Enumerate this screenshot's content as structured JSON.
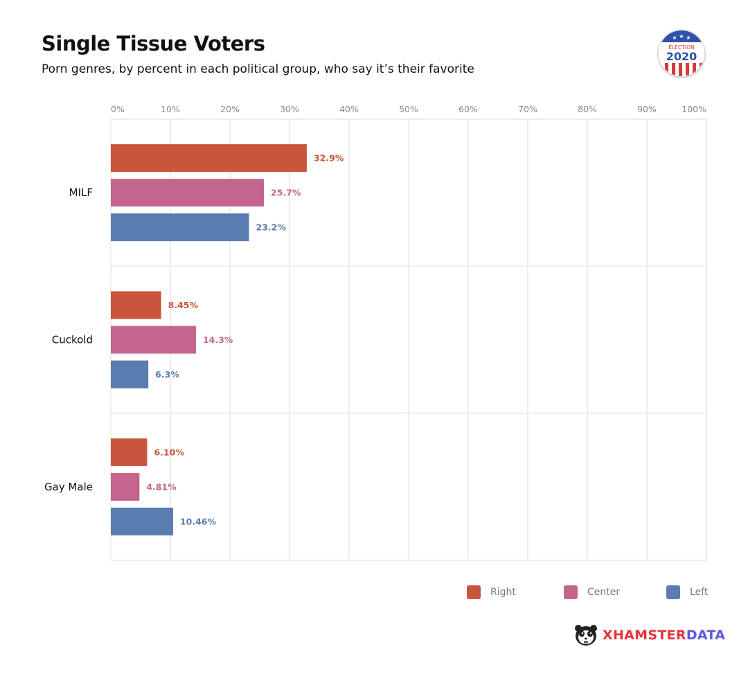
{
  "header": {
    "title": "Single Tissue Voters",
    "subtitle": "Porn genres, by percent in each political group, who say it’s their favorite"
  },
  "badge": {
    "top_text": "ELECTION",
    "year": "2020",
    "icon": "election-2020-button"
  },
  "brand": {
    "part1": "XHAMSTER",
    "part2": "DATA",
    "icon": "hamster-logo",
    "colors": {
      "part1": "#e8323c",
      "part2": "#5a5ae6"
    }
  },
  "chart_data": {
    "type": "bar",
    "orientation": "horizontal",
    "title": "Single Tissue Voters",
    "subtitle": "Porn genres, by percent in each political group, who say it’s their favorite",
    "xlabel": "",
    "ylabel": "",
    "xlim": [
      0,
      100
    ],
    "x_ticks": [
      "0%",
      "10%",
      "20%",
      "30%",
      "40%",
      "50%",
      "60%",
      "70%",
      "80%",
      "90%",
      "100%"
    ],
    "x_tick_values": [
      0,
      10,
      20,
      30,
      40,
      50,
      60,
      70,
      80,
      90,
      100
    ],
    "grid": true,
    "legend_position": "bottom-right",
    "categories": [
      "MILF",
      "Cuckold",
      "Gay Male"
    ],
    "series": [
      {
        "name": "Right",
        "color": "#c9553d",
        "values": [
          32.9,
          8.45,
          6.1
        ],
        "labels": [
          "32.9%",
          "8.45%",
          "6.10%"
        ]
      },
      {
        "name": "Center",
        "color": "#c3658d",
        "values": [
          25.7,
          14.3,
          4.81
        ],
        "labels": [
          "25.7%",
          "14.3%",
          "4.81%"
        ]
      },
      {
        "name": "Left",
        "color": "#5a7db0",
        "values": [
          23.2,
          6.3,
          10.46
        ],
        "labels": [
          "23.2%",
          "6.3%",
          "10.46%"
        ]
      }
    ]
  }
}
